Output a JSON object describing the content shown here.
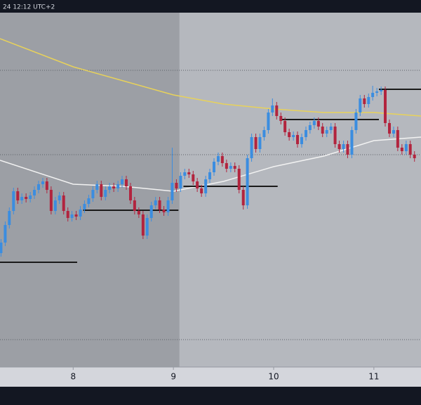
{
  "chart_data": {
    "type": "candlestick",
    "header_text": "24 12:12 UTC+2",
    "xlim": [
      7.27,
      11.47
    ],
    "xticks": [
      8,
      9,
      10,
      11
    ],
    "ylim": [
      0,
      504
    ],
    "shade_xlim": [
      7.27,
      9.06
    ],
    "up_color": "#3b8de0",
    "down_color": "#b2243e",
    "x": [
      7.28,
      7.322,
      7.363,
      7.405,
      7.447,
      7.488,
      7.53,
      7.572,
      7.613,
      7.655,
      7.697,
      7.738,
      7.78,
      7.822,
      7.863,
      7.905,
      7.947,
      7.988,
      8.03,
      8.072,
      8.113,
      8.155,
      8.197,
      8.238,
      8.28,
      8.322,
      8.363,
      8.405,
      8.447,
      8.488,
      8.53,
      8.572,
      8.613,
      8.655,
      8.697,
      8.738,
      8.78,
      8.822,
      8.863,
      8.905,
      8.947,
      8.988,
      9.03,
      9.072,
      9.113,
      9.155,
      9.197,
      9.238,
      9.28,
      9.322,
      9.363,
      9.405,
      9.447,
      9.488,
      9.53,
      9.572,
      9.613,
      9.655,
      9.697,
      9.738,
      9.78,
      9.822,
      9.863,
      9.905,
      9.947,
      9.988,
      10.03,
      10.072,
      10.113,
      10.155,
      10.197,
      10.238,
      10.28,
      10.322,
      10.363,
      10.405,
      10.447,
      10.488,
      10.53,
      10.572,
      10.613,
      10.655,
      10.697,
      10.738,
      10.78,
      10.822,
      10.863,
      10.905,
      10.947,
      10.988,
      11.03,
      11.072,
      11.113,
      11.155,
      11.197,
      11.238,
      11.28,
      11.322,
      11.363,
      11.405
    ],
    "open": [
      162,
      177,
      202,
      222,
      250,
      237,
      242,
      239,
      244,
      252,
      260,
      264,
      252,
      222,
      237,
      244,
      222,
      212,
      217,
      214,
      224,
      232,
      240,
      252,
      260,
      242,
      252,
      257,
      254,
      260,
      267,
      257,
      237,
      222,
      217,
      187,
      212,
      230,
      237,
      224,
      220,
      237,
      262,
      254,
      272,
      277,
      274,
      264,
      254,
      247,
      267,
      277,
      292,
      300,
      290,
      282,
      286,
      282,
      252,
      230,
      297,
      327,
      310,
      327,
      337,
      362,
      372,
      357,
      350,
      334,
      327,
      330,
      317,
      327,
      337,
      344,
      350,
      342,
      332,
      337,
      342,
      317,
      310,
      317,
      302,
      337,
      362,
      382,
      374,
      384,
      390,
      392,
      394,
      347,
      332,
      337,
      312,
      307,
      317,
      302
    ],
    "high": [
      182,
      207,
      227,
      255,
      255,
      247,
      247,
      249,
      257,
      265,
      269,
      269,
      257,
      242,
      249,
      249,
      227,
      222,
      222,
      229,
      237,
      245,
      257,
      265,
      265,
      257,
      262,
      262,
      265,
      272,
      272,
      262,
      242,
      227,
      222,
      217,
      235,
      242,
      242,
      229,
      242,
      312,
      267,
      277,
      282,
      282,
      279,
      269,
      259,
      272,
      282,
      297,
      305,
      305,
      295,
      291,
      291,
      287,
      257,
      302,
      332,
      332,
      332,
      342,
      367,
      382,
      377,
      362,
      355,
      339,
      335,
      335,
      332,
      342,
      349,
      355,
      355,
      347,
      342,
      347,
      347,
      322,
      322,
      322,
      342,
      367,
      387,
      387,
      389,
      400,
      397,
      399,
      399,
      352,
      342,
      342,
      317,
      322,
      322,
      307
    ],
    "low": [
      157,
      172,
      197,
      217,
      232,
      232,
      234,
      234,
      239,
      247,
      255,
      247,
      217,
      217,
      232,
      217,
      207,
      207,
      209,
      209,
      219,
      227,
      235,
      247,
      237,
      237,
      247,
      249,
      249,
      255,
      252,
      232,
      217,
      212,
      182,
      182,
      207,
      225,
      219,
      215,
      215,
      232,
      249,
      249,
      267,
      269,
      259,
      249,
      242,
      242,
      262,
      272,
      287,
      285,
      277,
      277,
      277,
      247,
      224,
      225,
      292,
      305,
      305,
      322,
      332,
      357,
      352,
      345,
      329,
      322,
      322,
      312,
      312,
      322,
      332,
      339,
      337,
      327,
      327,
      332,
      312,
      305,
      305,
      297,
      297,
      332,
      357,
      369,
      369,
      379,
      385,
      387,
      342,
      327,
      327,
      307,
      302,
      302,
      297,
      292
    ],
    "close": [
      177,
      202,
      222,
      250,
      237,
      242,
      239,
      244,
      252,
      260,
      264,
      252,
      222,
      237,
      244,
      222,
      212,
      217,
      214,
      224,
      232,
      240,
      252,
      260,
      242,
      252,
      257,
      254,
      260,
      267,
      257,
      237,
      222,
      217,
      187,
      212,
      230,
      237,
      224,
      220,
      237,
      262,
      254,
      272,
      277,
      274,
      264,
      254,
      247,
      267,
      277,
      292,
      300,
      290,
      282,
      286,
      282,
      252,
      230,
      297,
      327,
      310,
      327,
      337,
      362,
      372,
      357,
      350,
      334,
      327,
      330,
      317,
      327,
      337,
      344,
      350,
      342,
      332,
      337,
      342,
      317,
      310,
      317,
      302,
      337,
      362,
      382,
      374,
      384,
      390,
      392,
      394,
      347,
      332,
      337,
      312,
      307,
      317,
      302,
      297
    ],
    "lines": [
      {
        "color": "#e8d25a",
        "x": [
          7.27,
          8.0,
          8.5,
          9.0,
          9.5,
          10.0,
          10.5,
          11.0,
          11.47
        ],
        "values": [
          467,
          427,
          407,
          387,
          374,
          367,
          362,
          362,
          357
        ]
      },
      {
        "color": "#f2f2f2",
        "x": [
          7.27,
          8.0,
          8.5,
          9.0,
          9.5,
          10.0,
          10.5,
          11.0,
          11.47
        ],
        "values": [
          294,
          260,
          257,
          250,
          264,
          285,
          300,
          322,
          327
        ]
      }
    ],
    "levels": [
      {
        "value": 149,
        "x": [
          7.27,
          8.04
        ]
      },
      {
        "value": 223,
        "x": [
          8.1,
          9.05
        ]
      },
      {
        "value": 257,
        "x": [
          9.1,
          10.04
        ]
      },
      {
        "value": 352,
        "x": [
          10.07,
          11.05
        ]
      },
      {
        "value": 395,
        "x": [
          11.05,
          11.47
        ]
      }
    ],
    "hlines": [
      422,
      302,
      39
    ]
  }
}
